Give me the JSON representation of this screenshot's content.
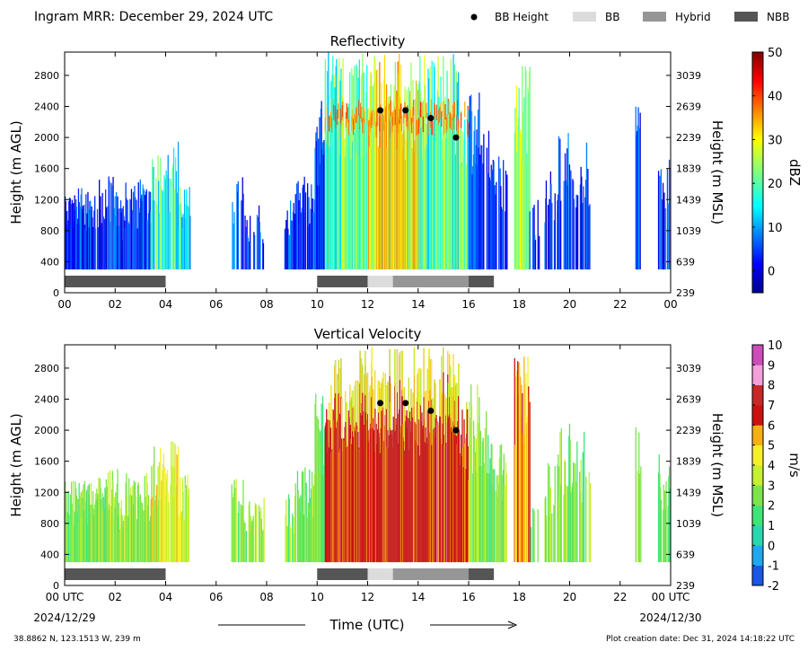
{
  "header": {
    "title": "Ingram MRR:  December 29, 2024 UTC"
  },
  "legend": {
    "placement": "top-right",
    "items": [
      {
        "label": "BB Height",
        "color": "#000000",
        "marker": "dot"
      },
      {
        "label": "BB",
        "color": "#dcdcdc",
        "marker": "box"
      },
      {
        "label": "Hybrid",
        "color": "#969696",
        "marker": "box"
      },
      {
        "label": "NBB",
        "color": "#555555",
        "marker": "box"
      }
    ]
  },
  "footer": {
    "location": "38.8862 N, 123.1513 W, 239 m",
    "created": "Plot creation date: Dec 31, 2024 14:18:22 UTC",
    "time_label": "Time (UTC)",
    "start_date": "2024/12/29",
    "end_date": "2024/12/30"
  },
  "chart_data": [
    {
      "type": "heatmap",
      "title": "Reflectivity",
      "ylabel": "Height (m AGL)",
      "y2label": "Height (m MSL)",
      "xlim": [
        0,
        24
      ],
      "ylim": [
        0,
        3100
      ],
      "x_ticks": [
        "00",
        "02",
        "04",
        "06",
        "08",
        "10",
        "12",
        "14",
        "16",
        "18",
        "20",
        "22",
        "00"
      ],
      "y_ticks": [
        0,
        400,
        800,
        1200,
        1600,
        2000,
        2400,
        2800
      ],
      "y2_ticks": [
        239,
        639,
        1039,
        1439,
        1839,
        2239,
        2639,
        3039
      ],
      "colorbar": {
        "label": "dBZ",
        "min": -5,
        "max": 50,
        "ticks": [
          0,
          10,
          20,
          30,
          40,
          50
        ],
        "colormap": "jet"
      },
      "bb_height": [
        {
          "x": 12.5,
          "y": 2350
        },
        {
          "x": 13.5,
          "y": 2350
        },
        {
          "x": 14.5,
          "y": 2250
        },
        {
          "x": 15.5,
          "y": 2000
        }
      ],
      "bb_type": [
        {
          "start": 0.0,
          "end": 4.0,
          "type": "NBB"
        },
        {
          "start": 10.0,
          "end": 12.0,
          "type": "NBB"
        },
        {
          "start": 12.0,
          "end": 13.0,
          "type": "BB"
        },
        {
          "start": 13.0,
          "end": 16.0,
          "type": "Hybrid"
        },
        {
          "start": 16.0,
          "end": 17.0,
          "type": "NBB"
        }
      ],
      "grid": false
    },
    {
      "type": "heatmap",
      "title": "Vertical Velocity",
      "ylabel": "Height (m AGL)",
      "y2label": "Height (m MSL)",
      "xlim": [
        0,
        24
      ],
      "ylim": [
        0,
        3100
      ],
      "x_ticks": [
        "00 UTC",
        "02",
        "04",
        "06",
        "08",
        "10",
        "12",
        "14",
        "16",
        "18",
        "20",
        "22",
        "00 UTC"
      ],
      "y_ticks": [
        0,
        400,
        800,
        1200,
        1600,
        2000,
        2400,
        2800
      ],
      "y2_ticks": [
        239,
        639,
        1039,
        1439,
        1839,
        2239,
        2639,
        3039
      ],
      "colorbar": {
        "label": "m/s",
        "min": -2,
        "max": 10,
        "ticks": [
          -2,
          -1,
          0,
          1,
          2,
          3,
          4,
          5,
          6,
          7,
          8,
          9,
          10
        ],
        "colormap": "velocity"
      },
      "bb_height": [
        {
          "x": 12.5,
          "y": 2350
        },
        {
          "x": 13.5,
          "y": 2350
        },
        {
          "x": 14.5,
          "y": 2250
        },
        {
          "x": 15.5,
          "y": 2000
        }
      ],
      "bb_type": [
        {
          "start": 0.0,
          "end": 4.0,
          "type": "NBB"
        },
        {
          "start": 10.0,
          "end": 12.0,
          "type": "NBB"
        },
        {
          "start": 12.0,
          "end": 13.0,
          "type": "BB"
        },
        {
          "start": 13.0,
          "end": 16.0,
          "type": "Hybrid"
        },
        {
          "start": 16.0,
          "end": 17.0,
          "type": "NBB"
        }
      ],
      "grid": false
    }
  ]
}
